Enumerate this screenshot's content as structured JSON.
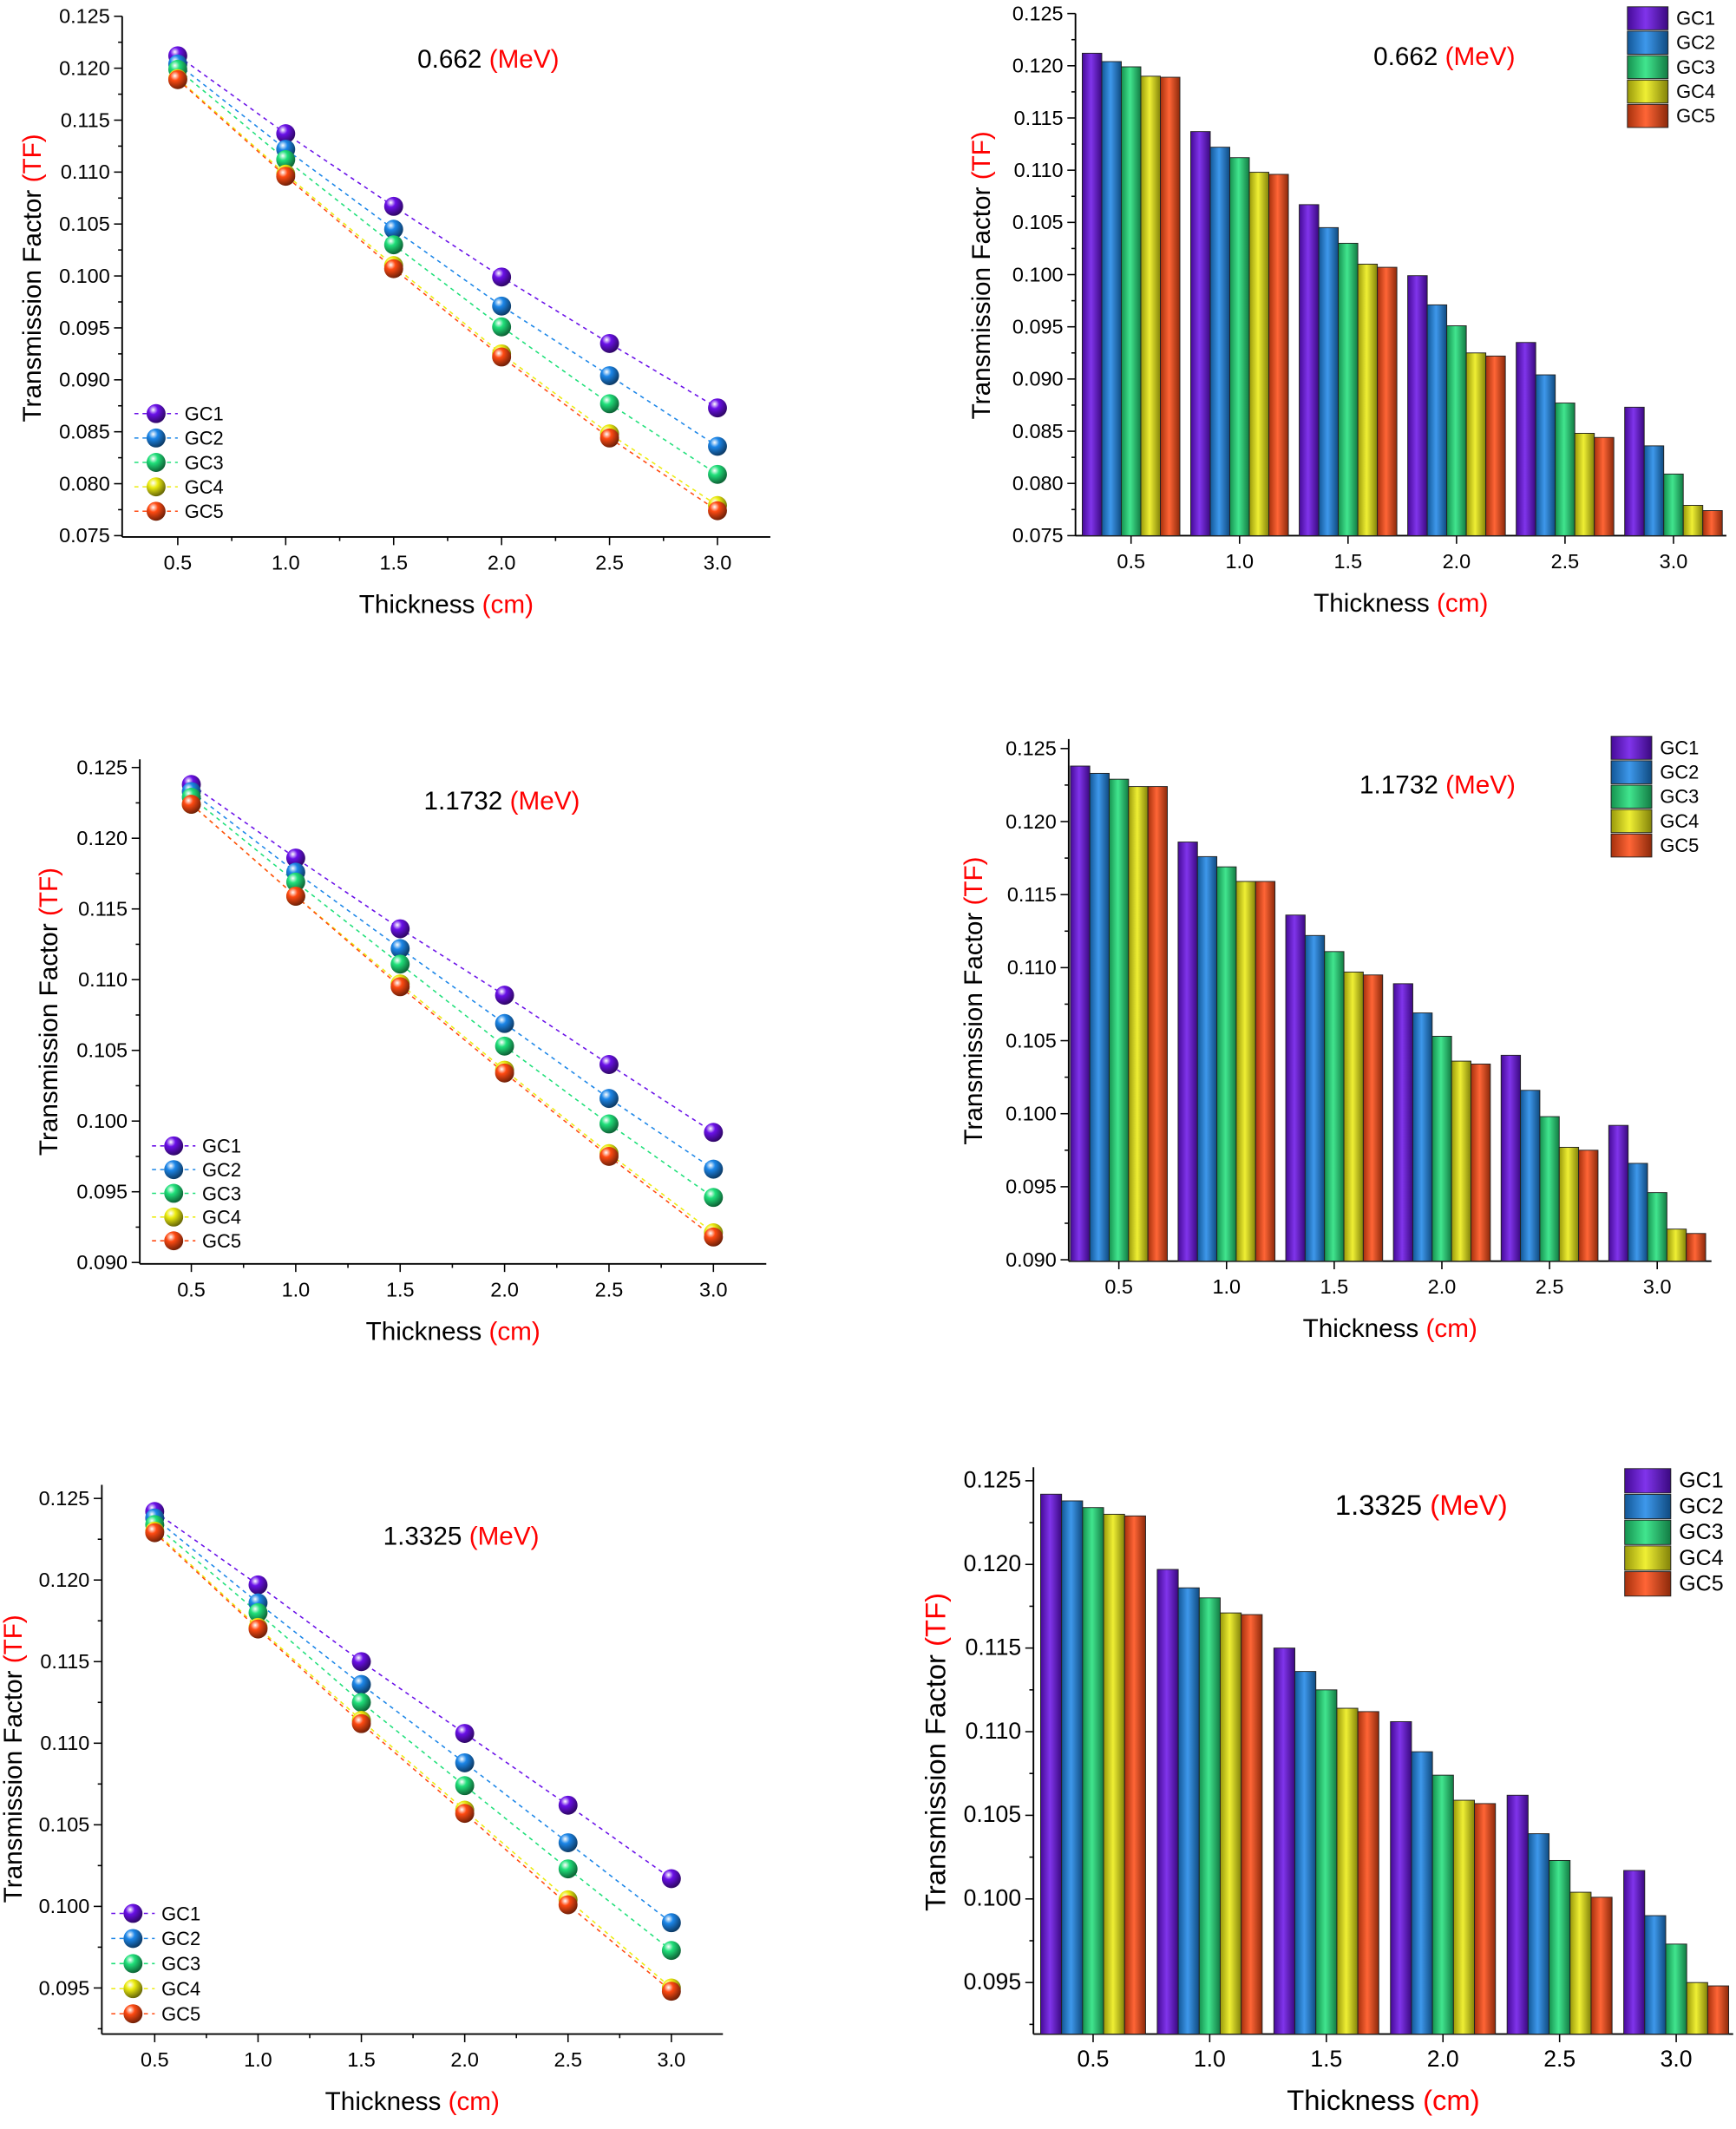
{
  "series_colors": {
    "GC1": "#6a10e8",
    "GC2": "#1c86e8",
    "GC3": "#20e07a",
    "GC4": "#ecec10",
    "GC5": "#ff4a12"
  },
  "chart_data": [
    {
      "type": "line",
      "panel": "line-0662",
      "energy": "0.662",
      "energy_unit": "(MeV)",
      "xlabel": "Thickness",
      "xlabel_unit": "(cm)",
      "ylabel": "Transmission Factor",
      "ylabel_unit": "(TF)",
      "x": [
        0.5,
        1.0,
        1.5,
        2.0,
        2.5,
        3.0
      ],
      "xticks": [
        "0.5",
        "1.0",
        "1.5",
        "2.0",
        "2.5",
        "3.0"
      ],
      "ylim": [
        0.075,
        0.125
      ],
      "yticks": [
        "0.075",
        "0.080",
        "0.085",
        "0.090",
        "0.095",
        "0.100",
        "0.105",
        "0.110",
        "0.115",
        "0.120",
        "0.125"
      ],
      "legend": "bottom-left",
      "series": [
        {
          "name": "GC1",
          "values": [
            0.1212,
            0.1137,
            0.1067,
            0.0999,
            0.0935,
            0.0873
          ]
        },
        {
          "name": "GC2",
          "values": [
            0.1204,
            0.1122,
            0.1045,
            0.0971,
            0.0904,
            0.0836
          ]
        },
        {
          "name": "GC3",
          "values": [
            0.1199,
            0.1112,
            0.103,
            0.0951,
            0.0877,
            0.0809
          ]
        },
        {
          "name": "GC4",
          "values": [
            0.119,
            0.1098,
            0.101,
            0.0925,
            0.0848,
            0.0779
          ]
        },
        {
          "name": "GC5",
          "values": [
            0.1189,
            0.1096,
            0.1007,
            0.0922,
            0.0844,
            0.0774
          ]
        }
      ]
    },
    {
      "type": "bar",
      "panel": "bar-0662",
      "energy": "0.662",
      "energy_unit": "(MeV)",
      "xlabel": "Thickness",
      "xlabel_unit": "(cm)",
      "ylabel": "Transmission Factor",
      "ylabel_unit": "(TF)",
      "x": [
        0.5,
        1.0,
        1.5,
        2.0,
        2.5,
        3.0
      ],
      "xticks": [
        "0.5",
        "1.0",
        "1.5",
        "2.0",
        "2.5",
        "3.0"
      ],
      "ylim": [
        0.075,
        0.125
      ],
      "yticks": [
        "0.075",
        "0.080",
        "0.085",
        "0.090",
        "0.095",
        "0.100",
        "0.105",
        "0.110",
        "0.115",
        "0.120",
        "0.125"
      ],
      "legend": "top-right",
      "series": [
        {
          "name": "GC1",
          "values": [
            0.1212,
            0.1137,
            0.1067,
            0.0999,
            0.0935,
            0.0873
          ]
        },
        {
          "name": "GC2",
          "values": [
            0.1204,
            0.1122,
            0.1045,
            0.0971,
            0.0904,
            0.0836
          ]
        },
        {
          "name": "GC3",
          "values": [
            0.1199,
            0.1112,
            0.103,
            0.0951,
            0.0877,
            0.0809
          ]
        },
        {
          "name": "GC4",
          "values": [
            0.119,
            0.1098,
            0.101,
            0.0925,
            0.0848,
            0.0779
          ]
        },
        {
          "name": "GC5",
          "values": [
            0.1189,
            0.1096,
            0.1007,
            0.0922,
            0.0844,
            0.0774
          ]
        }
      ]
    },
    {
      "type": "line",
      "panel": "line-11732",
      "energy": "1.1732",
      "energy_unit": "(MeV)",
      "xlabel": "Thickness",
      "xlabel_unit": "(cm)",
      "ylabel": "Transmission Factor",
      "ylabel_unit": "(TF)",
      "x": [
        0.5,
        1.0,
        1.5,
        2.0,
        2.5,
        3.0
      ],
      "xticks": [
        "0.5",
        "1.0",
        "1.5",
        "2.0",
        "2.5",
        "3.0"
      ],
      "ylim": [
        0.09,
        0.125
      ],
      "yticks": [
        "0.090",
        "0.095",
        "0.100",
        "0.105",
        "0.110",
        "0.115",
        "0.120",
        "0.125"
      ],
      "legend": "bottom-left",
      "series": [
        {
          "name": "GC1",
          "values": [
            0.1238,
            0.1186,
            0.1136,
            0.1089,
            0.104,
            0.0992
          ]
        },
        {
          "name": "GC2",
          "values": [
            0.1233,
            0.1176,
            0.1122,
            0.1069,
            0.1016,
            0.0966
          ]
        },
        {
          "name": "GC3",
          "values": [
            0.1229,
            0.1169,
            0.1111,
            0.1053,
            0.0998,
            0.0946
          ]
        },
        {
          "name": "GC4",
          "values": [
            0.1224,
            0.1159,
            0.1097,
            0.1036,
            0.0977,
            0.0921
          ]
        },
        {
          "name": "GC5",
          "values": [
            0.1224,
            0.1159,
            0.1095,
            0.1034,
            0.0975,
            0.0918
          ]
        }
      ]
    },
    {
      "type": "bar",
      "panel": "bar-11732",
      "energy": "1.1732",
      "energy_unit": "(MeV)",
      "xlabel": "Thickness",
      "xlabel_unit": "(cm)",
      "ylabel": "Transmission Factor",
      "ylabel_unit": "(TF)",
      "x": [
        0.5,
        1.0,
        1.5,
        2.0,
        2.5,
        3.0
      ],
      "xticks": [
        "0.5",
        "1.0",
        "1.5",
        "2.0",
        "2.5",
        "3.0"
      ],
      "ylim": [
        0.09,
        0.125
      ],
      "yticks": [
        "0.090",
        "0.095",
        "0.100",
        "0.105",
        "0.110",
        "0.115",
        "0.120",
        "0.125"
      ],
      "legend": "top-right",
      "series": [
        {
          "name": "GC1",
          "values": [
            0.1238,
            0.1186,
            0.1136,
            0.1089,
            0.104,
            0.0992
          ]
        },
        {
          "name": "GC2",
          "values": [
            0.1233,
            0.1176,
            0.1122,
            0.1069,
            0.1016,
            0.0966
          ]
        },
        {
          "name": "GC3",
          "values": [
            0.1229,
            0.1169,
            0.1111,
            0.1053,
            0.0998,
            0.0946
          ]
        },
        {
          "name": "GC4",
          "values": [
            0.1224,
            0.1159,
            0.1097,
            0.1036,
            0.0977,
            0.0921
          ]
        },
        {
          "name": "GC5",
          "values": [
            0.1224,
            0.1159,
            0.1095,
            0.1034,
            0.0975,
            0.0918
          ]
        }
      ]
    },
    {
      "type": "line",
      "panel": "line-13325",
      "energy": "1.3325",
      "energy_unit": "(MeV)",
      "xlabel": "Thickness",
      "xlabel_unit": "(cm)",
      "ylabel": "Transmission Factor",
      "ylabel_unit": "(TF)",
      "x": [
        0.5,
        1.0,
        1.5,
        2.0,
        2.5,
        3.0
      ],
      "xticks": [
        "0.5",
        "1.0",
        "1.5",
        "2.0",
        "2.5",
        "3.0"
      ],
      "ylim": [
        0.092,
        0.125
      ],
      "yticks": [
        "0.095",
        "0.100",
        "0.105",
        "0.110",
        "0.115",
        "0.120",
        "0.125"
      ],
      "legend": "bottom-left",
      "series": [
        {
          "name": "GC1",
          "values": [
            0.1242,
            0.1197,
            0.115,
            0.1106,
            0.1062,
            0.1017
          ]
        },
        {
          "name": "GC2",
          "values": [
            0.1238,
            0.1186,
            0.1136,
            0.1088,
            0.1039,
            0.099
          ]
        },
        {
          "name": "GC3",
          "values": [
            0.1234,
            0.118,
            0.1125,
            0.1074,
            0.1023,
            0.0973
          ]
        },
        {
          "name": "GC4",
          "values": [
            0.123,
            0.1171,
            0.1114,
            0.1059,
            0.1004,
            0.095
          ]
        },
        {
          "name": "GC5",
          "values": [
            0.1229,
            0.117,
            0.1112,
            0.1057,
            0.1001,
            0.0948
          ]
        }
      ]
    },
    {
      "type": "bar",
      "panel": "bar-13325",
      "energy": "1.3325",
      "energy_unit": "(MeV)",
      "xlabel": "Thickness",
      "xlabel_unit": "(cm)",
      "ylabel": "Transmission Factor",
      "ylabel_unit": "(TF)",
      "x": [
        0.5,
        1.0,
        1.5,
        2.0,
        2.5,
        3.0
      ],
      "xticks": [
        "0.5",
        "1.0",
        "1.5",
        "2.0",
        "2.5",
        "3.0"
      ],
      "ylim": [
        0.092,
        0.125
      ],
      "yticks": [
        "0.095",
        "0.100",
        "0.105",
        "0.110",
        "0.115",
        "0.120",
        "0.125"
      ],
      "legend": "top-right",
      "series": [
        {
          "name": "GC1",
          "values": [
            0.1242,
            0.1197,
            0.115,
            0.1106,
            0.1062,
            0.1017
          ]
        },
        {
          "name": "GC2",
          "values": [
            0.1238,
            0.1186,
            0.1136,
            0.1088,
            0.1039,
            0.099
          ]
        },
        {
          "name": "GC3",
          "values": [
            0.1234,
            0.118,
            0.1125,
            0.1074,
            0.1023,
            0.0973
          ]
        },
        {
          "name": "GC4",
          "values": [
            0.123,
            0.1171,
            0.1114,
            0.1059,
            0.1004,
            0.095
          ]
        },
        {
          "name": "GC5",
          "values": [
            0.1229,
            0.117,
            0.1112,
            0.1057,
            0.1001,
            0.0948
          ]
        }
      ]
    }
  ]
}
